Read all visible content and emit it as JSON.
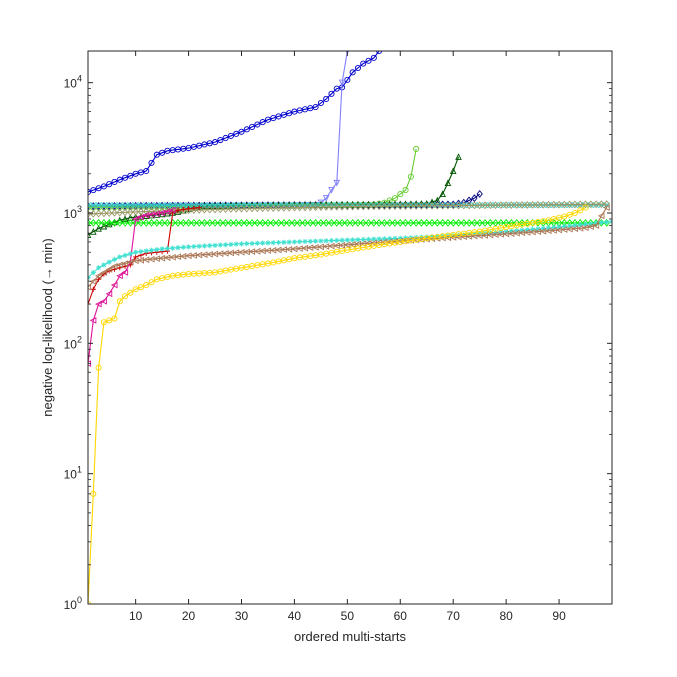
{
  "chart_data": {
    "type": "line",
    "title": "",
    "xlabel": "ordered multi-starts",
    "ylabel": "negative log-likelihood (→ min)",
    "x_range": [
      1,
      100
    ],
    "y_range": [
      1,
      17500
    ],
    "y_scale": "log",
    "x_ticks": [
      10,
      20,
      30,
      40,
      50,
      60,
      70,
      80,
      90
    ],
    "y_ticks": [
      {
        "value": 1,
        "base": "10",
        "exp": "0"
      },
      {
        "value": 10,
        "base": "10",
        "exp": "1"
      },
      {
        "value": 100,
        "base": "10",
        "exp": "2"
      },
      {
        "value": 1000,
        "base": "10",
        "exp": "3"
      },
      {
        "value": 10000,
        "base": "10",
        "exp": "4"
      }
    ],
    "grid": false,
    "legend": "none",
    "series": [
      {
        "color": "#0000cc",
        "marker": "circle",
        "x": [
          1,
          4,
          7,
          10,
          12,
          14,
          16,
          20,
          25,
          30,
          35,
          40,
          44,
          46,
          48,
          49,
          51,
          53,
          55,
          56
        ],
        "y": [
          1450,
          1600,
          1800,
          2000,
          2100,
          2800,
          3000,
          3150,
          3500,
          4200,
          5200,
          6000,
          6500,
          7500,
          9000,
          9200,
          12000,
          14000,
          15500,
          17500
        ]
      },
      {
        "color": "#8080ff",
        "marker": "triangle-down",
        "x": [
          1,
          10,
          20,
          30,
          40,
          44,
          45,
          46,
          47,
          48,
          49,
          50
        ],
        "y": [
          1100,
          1110,
          1120,
          1130,
          1140,
          1150,
          1200,
          1300,
          1500,
          1700,
          10000,
          17500
        ]
      },
      {
        "color": "#000080",
        "marker": "diamond",
        "x": [
          1,
          10,
          20,
          30,
          40,
          50,
          56,
          60,
          65,
          70,
          72,
          74,
          75
        ],
        "y": [
          1130,
          1135,
          1140,
          1145,
          1150,
          1150,
          1150,
          1155,
          1160,
          1165,
          1200,
          1300,
          1400
        ]
      },
      {
        "color": "#66cc33",
        "marker": "circle",
        "x": [
          1,
          10,
          20,
          30,
          40,
          50,
          55,
          57,
          59,
          61,
          62,
          63
        ],
        "y": [
          1100,
          1110,
          1120,
          1130,
          1140,
          1150,
          1160,
          1200,
          1300,
          1500,
          1900,
          3100
        ]
      },
      {
        "color": "#005500",
        "marker": "triangle-up",
        "x": [
          1,
          3,
          5,
          7,
          9,
          12,
          15,
          18,
          21,
          23,
          30,
          40,
          50,
          60,
          65,
          67,
          68,
          69,
          70,
          71
        ],
        "y": [
          680,
          760,
          820,
          880,
          920,
          950,
          980,
          1020,
          1100,
          1130,
          1140,
          1150,
          1160,
          1170,
          1180,
          1250,
          1400,
          1700,
          2100,
          2700
        ]
      },
      {
        "color": "#33cccc",
        "marker": "x",
        "x": [
          1,
          10,
          20,
          30,
          40,
          50,
          60,
          70,
          80,
          90,
          99
        ],
        "y": [
          1150,
          1150,
          1150,
          1150,
          1150,
          1150,
          1150,
          1150,
          1150,
          1150,
          1150
        ]
      },
      {
        "color": "#999966",
        "marker": "diamond",
        "x": [
          1,
          10,
          20,
          30,
          40,
          50,
          60,
          70,
          80,
          90,
          99
        ],
        "y": [
          980,
          1020,
          1050,
          1080,
          1100,
          1120,
          1130,
          1140,
          1150,
          1160,
          1170
        ]
      },
      {
        "color": "#00ee00",
        "marker": "diamond",
        "x": [
          1,
          10,
          20,
          30,
          40,
          50,
          60,
          70,
          80,
          90,
          99
        ],
        "y": [
          840,
          840,
          840,
          840,
          840,
          840,
          840,
          840,
          840,
          840,
          840
        ]
      },
      {
        "color": "#cc0000",
        "marker": "plus",
        "x": [
          1,
          2,
          3,
          4,
          5,
          6,
          7,
          8,
          9,
          10,
          12,
          14,
          16,
          17,
          18,
          20,
          22
        ],
        "y": [
          200,
          260,
          310,
          340,
          360,
          370,
          380,
          390,
          400,
          460,
          490,
          500,
          510,
          1000,
          1050,
          1080,
          1100
        ]
      },
      {
        "color": "#dd1199",
        "marker": "triangle-left",
        "x": [
          1,
          2,
          3,
          4,
          5,
          6,
          7,
          8,
          9,
          10,
          12,
          15,
          17
        ],
        "y": [
          70,
          150,
          200,
          210,
          240,
          280,
          330,
          350,
          420,
          900,
          960,
          1000,
          1050
        ]
      },
      {
        "color": "#40e0d0",
        "marker": "asterisk",
        "x": [
          1,
          3,
          5,
          7,
          10,
          15,
          20,
          30,
          40,
          50,
          60,
          70,
          80,
          90,
          95,
          100
        ],
        "y": [
          320,
          380,
          420,
          460,
          500,
          530,
          550,
          580,
          600,
          620,
          640,
          670,
          720,
          780,
          820,
          860
        ]
      },
      {
        "color": "#aa7755",
        "marker": "triangle-left",
        "x": [
          1,
          3,
          6,
          10,
          15,
          20,
          30,
          40,
          50,
          60,
          70,
          80,
          90,
          95,
          97,
          98,
          99
        ],
        "y": [
          270,
          330,
          390,
          430,
          450,
          470,
          500,
          530,
          570,
          610,
          650,
          690,
          740,
          770,
          800,
          950,
          1100
        ]
      },
      {
        "color": "#ffd700",
        "marker": "circle",
        "x": [
          1,
          2,
          3,
          4,
          5,
          6,
          7,
          8,
          10,
          12,
          14,
          17,
          20,
          25,
          30,
          35,
          40,
          45,
          50,
          55,
          60,
          65,
          70,
          75,
          80,
          85,
          88,
          91,
          93,
          95
        ],
        "y": [
          1,
          7,
          65,
          145,
          150,
          155,
          210,
          230,
          260,
          280,
          310,
          330,
          340,
          350,
          380,
          410,
          450,
          480,
          520,
          560,
          600,
          640,
          680,
          720,
          780,
          840,
          880,
          940,
          1000,
          1100
        ]
      }
    ]
  }
}
